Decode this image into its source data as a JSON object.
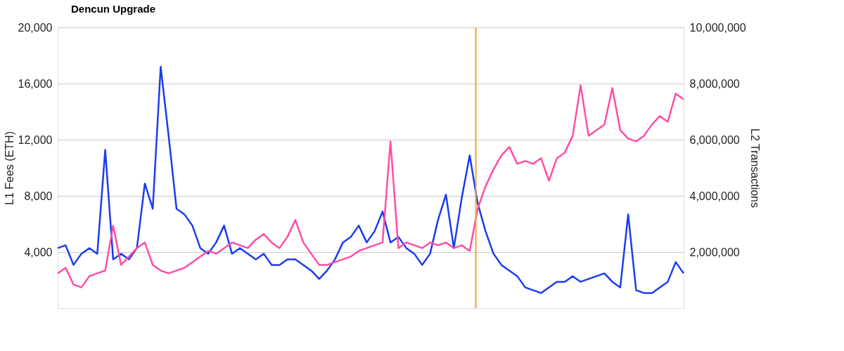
{
  "chart_data": {
    "type": "line",
    "ylabel": "L1 Fees (ETH)",
    "y2label": "L2 Transactions",
    "categories": [
      null,
      null,
      null,
      null,
      null,
      null,
      null,
      null,
      null,
      null,
      null,
      null,
      null,
      null,
      null,
      null,
      null,
      null,
      null,
      null,
      null,
      null,
      null,
      null,
      null,
      null,
      null,
      null,
      null,
      null,
      null,
      null,
      null,
      null,
      null,
      null,
      null,
      null,
      null,
      null,
      null,
      null,
      null,
      null,
      null,
      null,
      null,
      null,
      null,
      null,
      null,
      null,
      null,
      null,
      null,
      null,
      null,
      null,
      null,
      null,
      null,
      null,
      null,
      null,
      null,
      null,
      null,
      null,
      null,
      null,
      null,
      null,
      null,
      null,
      null,
      null,
      null,
      null,
      null,
      null
    ],
    "ylim": [
      0,
      20000
    ],
    "yticks": [
      {
        "value": 4000,
        "label": "4,000"
      },
      {
        "value": 8000,
        "label": "8,000"
      },
      {
        "value": 12000,
        "label": "12,000"
      },
      {
        "value": 16000,
        "label": "16,000"
      },
      {
        "value": 20000,
        "label": "20,000"
      }
    ],
    "y2lim": [
      0,
      10000000
    ],
    "y2ticks": [
      {
        "value": 2000000,
        "label": "2,000,000"
      },
      {
        "value": 4000000,
        "label": "4,000,000"
      },
      {
        "value": 6000000,
        "label": "6,000,000"
      },
      {
        "value": 8000000,
        "label": "8,000,000"
      },
      {
        "value": 10000000,
        "label": "10,000,000"
      }
    ],
    "tick_labels": "y",
    "grid": "y",
    "line_style": "solid",
    "marker": "none",
    "annotations": [
      "Dencun Upgrade"
    ],
    "series": [
      {
        "color": "#1a3cf0",
        "values": [
          4280,
          4480,
          3080,
          3880,
          4280,
          3880,
          11280,
          3480,
          3880,
          3480,
          4280,
          8880,
          7080,
          17200,
          12280,
          7080,
          6680,
          5880,
          4280,
          3880,
          4680,
          5880,
          3880,
          4280,
          3880,
          3480,
          3880,
          3080,
          3080,
          3480,
          3480,
          3080,
          2680,
          2080,
          2680,
          3480,
          4680,
          5080,
          5880,
          4680,
          5480,
          6880,
          4680,
          5080,
          4280,
          3880,
          3080,
          3880,
          6280,
          8080,
          4280,
          7880,
          10880,
          7480,
          5480,
          3880,
          3080,
          2680,
          2280,
          1480,
          1280,
          1080,
          1480,
          1880,
          1880,
          2280,
          1880,
          2080,
          2280,
          2480,
          1880,
          1480,
          6680,
          1280,
          1080,
          1080,
          1480,
          1880,
          3280,
          2480
        ]
      },
      {
        "color": "#ff4da6",
        "axis": "y2",
        "values": [
          1240000,
          1440000,
          840000,
          740000,
          1140000,
          1240000,
          1340000,
          2940000,
          1540000,
          1840000,
          2140000,
          2340000,
          1540000,
          1340000,
          1240000,
          1340000,
          1440000,
          1640000,
          1840000,
          2040000,
          1940000,
          2140000,
          2340000,
          2240000,
          2140000,
          2440000,
          2640000,
          2340000,
          2140000,
          2540000,
          3140000,
          2340000,
          1940000,
          1540000,
          1540000,
          1640000,
          1740000,
          1840000,
          2040000,
          2140000,
          2240000,
          2340000,
          5940000,
          2140000,
          2340000,
          2240000,
          2140000,
          2340000,
          2240000,
          2340000,
          2140000,
          2240000,
          2040000,
          3540000,
          4340000,
          4940000,
          5440000,
          5740000,
          5140000,
          5240000,
          5140000,
          5340000,
          4540000,
          5340000,
          5540000,
          6140000,
          7940000,
          6140000,
          6340000,
          6540000,
          7840000,
          6340000,
          6040000,
          5940000,
          6140000,
          6540000,
          6840000,
          6640000,
          7640000,
          7440000
        ]
      }
    ]
  }
}
